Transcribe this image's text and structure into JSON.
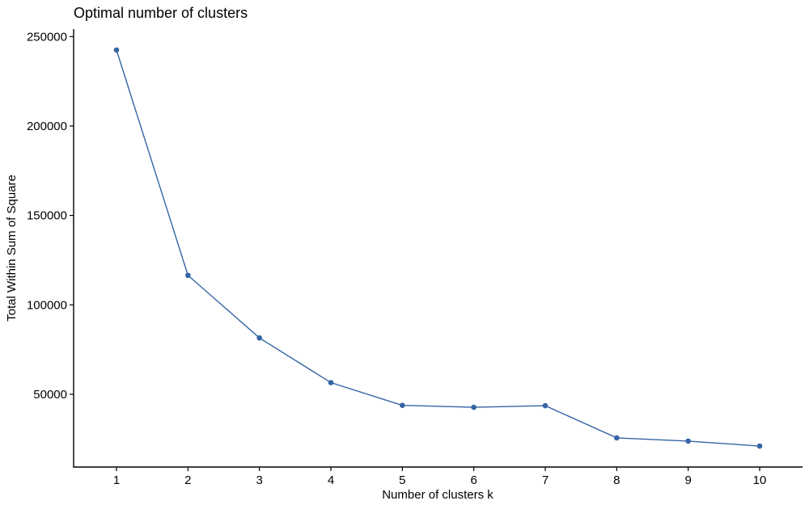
{
  "chart_data": {
    "type": "line",
    "title": "Optimal number of clusters",
    "xlabel": "Number of clusters k",
    "ylabel": "Total Within Sum of Square",
    "x": [
      1,
      2,
      3,
      4,
      5,
      6,
      7,
      8,
      9,
      10
    ],
    "series": [
      {
        "values": [
          242500,
          116500,
          81500,
          56500,
          43800,
          42700,
          43600,
          25600,
          23800,
          21000
        ]
      }
    ],
    "x_ticks": [
      "1",
      "2",
      "3",
      "4",
      "5",
      "6",
      "7",
      "8",
      "9",
      "10"
    ],
    "y_ticks": [
      50000,
      100000,
      150000,
      200000,
      250000
    ],
    "y_tick_labels": [
      "50000",
      "100000",
      "150000",
      "200000",
      "250000"
    ],
    "xlim": [
      0.4,
      10.6
    ],
    "ylim": [
      9300,
      254200
    ],
    "grid": false,
    "color": "#3465a4"
  }
}
